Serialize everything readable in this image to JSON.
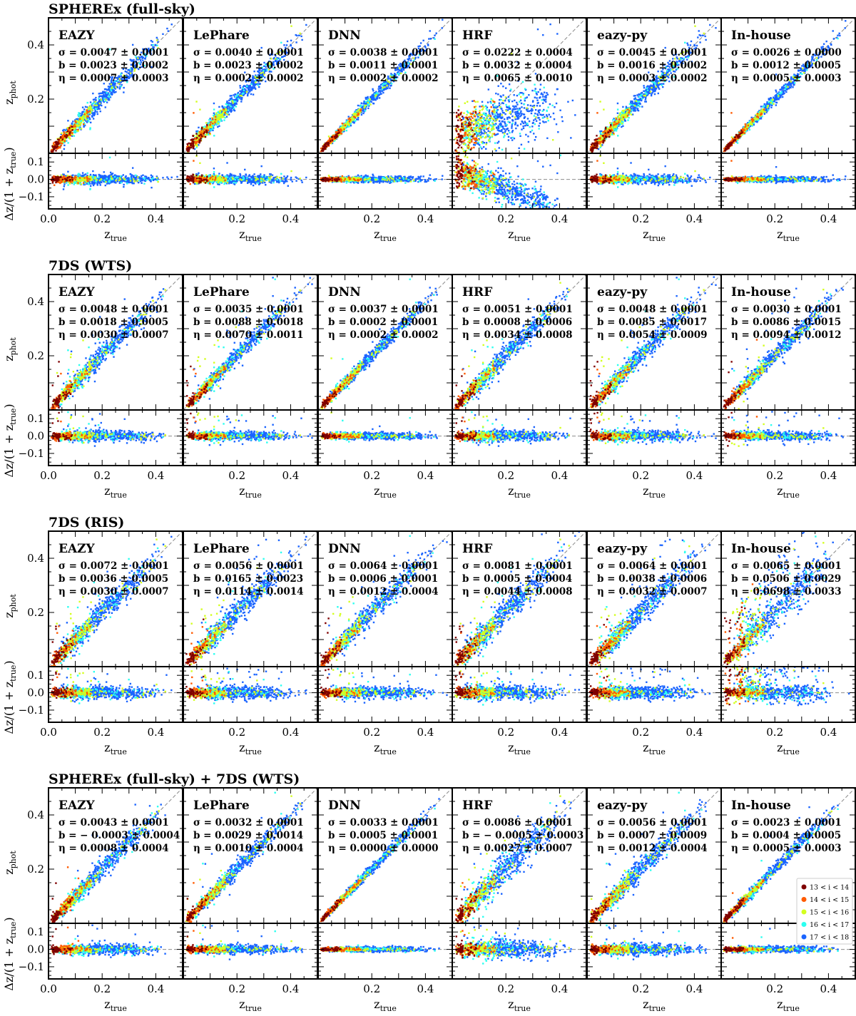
{
  "figure": {
    "rows": [
      {
        "title": "SPHEREx (full-sky)",
        "panels": [
          {
            "method": "EAZY",
            "sigma": "σ = 0.0047 ± 0.0001",
            "bias": "b = 0.0023 ± 0.0002",
            "eta": "η = 0.0007 ± 0.0003",
            "scatter": 0.012,
            "outliers": 0.01,
            "profile": "normal"
          },
          {
            "method": "LePhare",
            "sigma": "σ = 0.0040 ± 0.0001",
            "bias": "b = 0.0023 ± 0.0002",
            "eta": "η = 0.0002 ± 0.0002",
            "scatter": 0.011,
            "outliers": 0.01,
            "profile": "normal"
          },
          {
            "method": "DNN",
            "sigma": "σ = 0.0038 ± 0.0001",
            "bias": "b = 0.0011 ± 0.0001",
            "eta": "η = 0.0002 ± 0.0002",
            "scatter": 0.007,
            "outliers": 0.005,
            "profile": "normal"
          },
          {
            "method": "HRF",
            "sigma": "σ = 0.0222 ± 0.0004",
            "bias": "b = 0.0032 ± 0.0004",
            "eta": "η = 0.0065 ± 0.0010",
            "scatter": 0.035,
            "outliers": 0.02,
            "profile": "hrf"
          },
          {
            "method": "eazy-py",
            "sigma": "σ = 0.0045 ± 0.0001",
            "bias": "b = 0.0016 ± 0.0002",
            "eta": "η = 0.0003 ± 0.0002",
            "scatter": 0.011,
            "outliers": 0.01,
            "profile": "normal"
          },
          {
            "method": "In-house",
            "sigma": "σ = 0.0026 ± 0.0000",
            "bias": "b = 0.0012 ± 0.0005",
            "eta": "η = 0.0005 ± 0.0003",
            "scatter": 0.006,
            "outliers": 0.005,
            "profile": "normal"
          }
        ]
      },
      {
        "title": "7DS (WTS)",
        "panels": [
          {
            "method": "EAZY",
            "sigma": "σ = 0.0048 ± 0.0001",
            "bias": "b = 0.0018 ± 0.0005",
            "eta": "η = 0.0030 ± 0.0007",
            "scatter": 0.012,
            "outliers": 0.03,
            "profile": "normal"
          },
          {
            "method": "LePhare",
            "sigma": "σ = 0.0035 ± 0.0001",
            "bias": "b = 0.0088 ± 0.0018",
            "eta": "η = 0.0070 ± 0.0011",
            "scatter": 0.01,
            "outliers": 0.04,
            "profile": "normal"
          },
          {
            "method": "DNN",
            "sigma": "σ = 0.0037 ± 0.0001",
            "bias": "b = 0.0002 ± 0.0001",
            "eta": "η = 0.0002 ± 0.0002",
            "scatter": 0.008,
            "outliers": 0.01,
            "profile": "normal"
          },
          {
            "method": "HRF",
            "sigma": "σ = 0.0051 ± 0.0001",
            "bias": "b = 0.0008 ± 0.0006",
            "eta": "η = 0.0034 ± 0.0008",
            "scatter": 0.013,
            "outliers": 0.04,
            "profile": "normal"
          },
          {
            "method": "eazy-py",
            "sigma": "σ = 0.0048 ± 0.0001",
            "bias": "b = 0.0085 ± 0.0017",
            "eta": "η = 0.0054 ± 0.0009",
            "scatter": 0.012,
            "outliers": 0.04,
            "profile": "normal"
          },
          {
            "method": "In-house",
            "sigma": "σ = 0.0030 ± 0.0001",
            "bias": "b = 0.0086 ± 0.0015",
            "eta": "η = 0.0094 ± 0.0012",
            "scatter": 0.01,
            "outliers": 0.06,
            "profile": "normal"
          }
        ]
      },
      {
        "title": "7DS (RIS)",
        "panels": [
          {
            "method": "EAZY",
            "sigma": "σ = 0.0072 ± 0.0001",
            "bias": "b = 0.0036 ± 0.0005",
            "eta": "η = 0.0030 ± 0.0007",
            "scatter": 0.015,
            "outliers": 0.05,
            "profile": "normal"
          },
          {
            "method": "LePhare",
            "sigma": "σ = 0.0056 ± 0.0001",
            "bias": "b = 0.0165 ± 0.0023",
            "eta": "η = 0.0114 ± 0.0014",
            "scatter": 0.015,
            "outliers": 0.07,
            "profile": "normal"
          },
          {
            "method": "DNN",
            "sigma": "σ = 0.0064 ± 0.0001",
            "bias": "b = 0.0006 ± 0.0001",
            "eta": "η = 0.0012 ± 0.0004",
            "scatter": 0.013,
            "outliers": 0.04,
            "profile": "normal"
          },
          {
            "method": "HRF",
            "sigma": "σ = 0.0081 ± 0.0001",
            "bias": "b = 0.0005 ± 0.0004",
            "eta": "η = 0.0044 ± 0.0008",
            "scatter": 0.017,
            "outliers": 0.05,
            "profile": "normal"
          },
          {
            "method": "eazy-py",
            "sigma": "σ = 0.0064 ± 0.0001",
            "bias": "b = 0.0038 ± 0.0006",
            "eta": "η = 0.0032 ± 0.0007",
            "scatter": 0.015,
            "outliers": 0.08,
            "profile": "normal"
          },
          {
            "method": "In-house",
            "sigma": "σ = 0.0065 ± 0.0001",
            "bias": "b = 0.0506 ± 0.0029",
            "eta": "η = 0.0698 ± 0.0033",
            "scatter": 0.016,
            "outliers": 0.22,
            "profile": "inhouse-ris"
          }
        ]
      },
      {
        "title": "SPHEREx (full-sky) + 7DS (WTS)",
        "panels": [
          {
            "method": "EAZY",
            "sigma": "σ = 0.0043 ± 0.0001",
            "bias": "b = − 0.0003 ± 0.0004",
            "eta": "η = 0.0008 ± 0.0004",
            "scatter": 0.012,
            "outliers": 0.02,
            "profile": "normal"
          },
          {
            "method": "LePhare",
            "sigma": "σ = 0.0032 ± 0.0001",
            "bias": "b = 0.0029 ± 0.0014",
            "eta": "η = 0.0010 ± 0.0004",
            "scatter": 0.01,
            "outliers": 0.02,
            "profile": "normal"
          },
          {
            "method": "DNN",
            "sigma": "σ = 0.0033 ± 0.0001",
            "bias": "b = 0.0005 ± 0.0001",
            "eta": "η = 0.0000 ± 0.0000",
            "scatter": 0.006,
            "outliers": 0.003,
            "profile": "normal"
          },
          {
            "method": "HRF",
            "sigma": "σ = 0.0086 ± 0.0001",
            "bias": "b = − 0.0005 ± 0.0003",
            "eta": "η = 0.0027 ± 0.0007",
            "scatter": 0.02,
            "outliers": 0.03,
            "profile": "normal"
          },
          {
            "method": "eazy-py",
            "sigma": "σ = 0.0056 ± 0.0001",
            "bias": "b = 0.0007 ± 0.0009",
            "eta": "η = 0.0012 ± 0.0004",
            "scatter": 0.013,
            "outliers": 0.02,
            "profile": "normal"
          },
          {
            "method": "In-house",
            "sigma": "σ = 0.0023 ± 0.0001",
            "bias": "b = 0.0004 ± 0.0005",
            "eta": "η = 0.0005 ± 0.0003",
            "scatter": 0.007,
            "outliers": 0.005,
            "profile": "normal"
          }
        ]
      }
    ],
    "axes": {
      "xlabel_main": "z",
      "xlabel_sub": "true",
      "ylabel_top_main": "z",
      "ylabel_top_sub": "phot",
      "ylabel_bottom_prefix": "Δz/(1 + z",
      "ylabel_bottom_sub": "true",
      "ylabel_bottom_suffix": ")",
      "top_yticks": [
        "0.2",
        "0.4"
      ],
      "bottom_yticks": [
        "0.1",
        "0.0",
        "−0.1"
      ],
      "xticks_first": [
        "0.0",
        "0.2",
        "0.4"
      ],
      "xticks_other": [
        "0.2",
        "0.4"
      ]
    },
    "legend": {
      "entries": [
        {
          "label": "13 < i < 14",
          "color": "#7f0000"
        },
        {
          "label": "14 < i < 15",
          "color": "#ff5a00"
        },
        {
          "label": "15 < i < 16",
          "color": "#d4ff1f"
        },
        {
          "label": "16 < i < 17",
          "color": "#2bfff0"
        },
        {
          "label": "17 < i < 18",
          "color": "#1a64ff"
        }
      ]
    },
    "colors": {
      "reference_line": "#8c8c8c",
      "magnitude_bins": [
        "#7f0000",
        "#ff5a00",
        "#d4ff1f",
        "#2bfff0",
        "#1a64ff"
      ]
    }
  },
  "chart_data": {
    "type": "scatter",
    "x_range": [
      0.0,
      0.5
    ],
    "y_range_top": [
      0.0,
      0.5
    ],
    "y_range_bottom": [
      -0.17,
      0.15
    ],
    "xticks": [
      0.0,
      0.2,
      0.4
    ],
    "yticks_top": [
      0.2,
      0.4
    ],
    "yticks_bottom": [
      -0.1,
      0.0,
      0.1
    ],
    "reference_lines": [
      "z_phot = z_true",
      "Δz/(1+z_true) = 0"
    ],
    "grid": false,
    "legend_placement": "lower-right of bottom-right panel",
    "series": [
      {
        "name": "13 < i < 14",
        "color": "#7f0000"
      },
      {
        "name": "14 < i < 15",
        "color": "#ff5a00"
      },
      {
        "name": "15 < i < 16",
        "color": "#d4ff1f"
      },
      {
        "name": "16 < i < 17",
        "color": "#2bfff0"
      },
      {
        "name": "17 < i < 18",
        "color": "#1a64ff"
      }
    ]
  }
}
